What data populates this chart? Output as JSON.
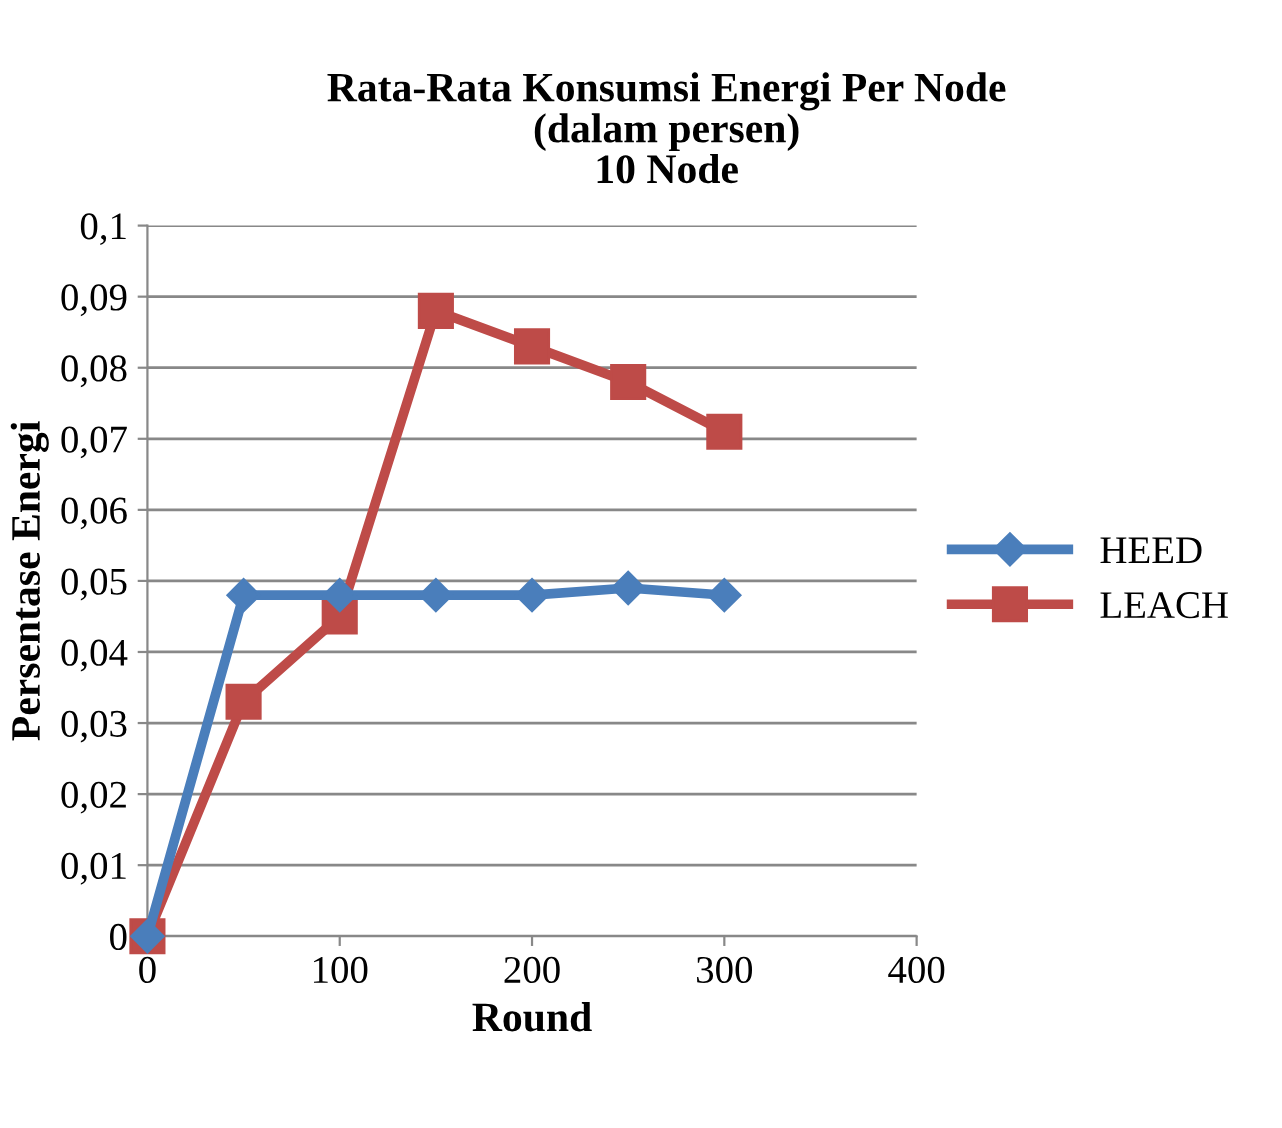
{
  "chart_data": {
    "type": "line",
    "title": "Rata-Rata Konsumsi Energi Per Node\n(dalam persen)\n10 Node",
    "xlabel": "Round",
    "ylabel": "Persentase Energi",
    "x": [
      0,
      50,
      100,
      150,
      200,
      250,
      300
    ],
    "series": [
      {
        "name": "HEED",
        "color": "#4a7ebb",
        "marker": "diamond",
        "values": [
          0,
          0.048,
          0.048,
          0.048,
          0.048,
          0.049,
          0.048
        ]
      },
      {
        "name": "LEACH",
        "color": "#be4b48",
        "marker": "square",
        "values": [
          0,
          0.033,
          0.045,
          0.088,
          0.083,
          0.078,
          0.071
        ]
      }
    ],
    "xlim": [
      0,
      400
    ],
    "xticks": [
      0,
      100,
      200,
      300,
      400
    ],
    "ylim": [
      0,
      0.1
    ],
    "yticks": [
      {
        "value": 0,
        "label": "0"
      },
      {
        "value": 0.01,
        "label": "0,01"
      },
      {
        "value": 0.02,
        "label": "0,02"
      },
      {
        "value": 0.03,
        "label": "0,03"
      },
      {
        "value": 0.04,
        "label": "0,04"
      },
      {
        "value": 0.05,
        "label": "0,05"
      },
      {
        "value": 0.06,
        "label": "0,06"
      },
      {
        "value": 0.07,
        "label": "0,07"
      },
      {
        "value": 0.08,
        "label": "0,08"
      },
      {
        "value": 0.09,
        "label": "0,09"
      },
      {
        "value": 0.1,
        "label": "0,1"
      }
    ],
    "grid": "y",
    "legend": "right",
    "line_style": "solid"
  }
}
